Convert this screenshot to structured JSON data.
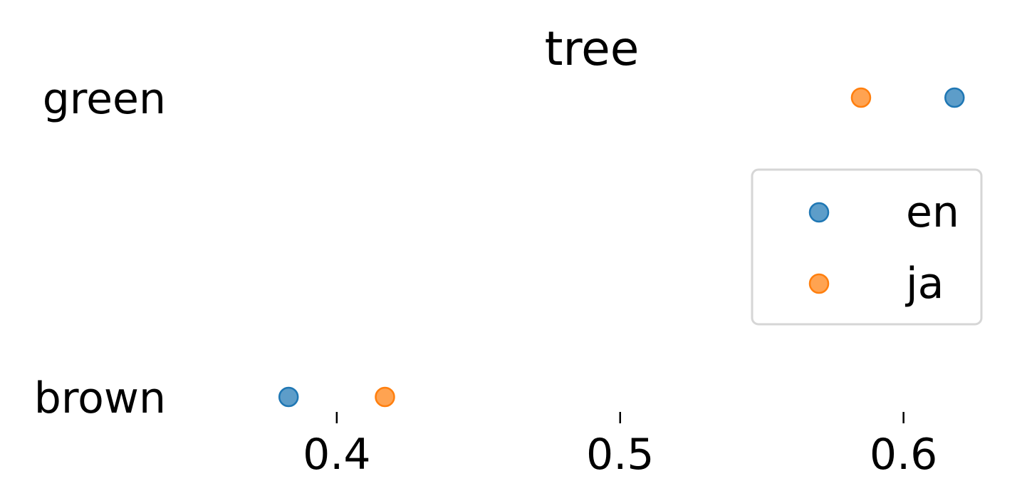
{
  "chart_data": {
    "type": "scatter",
    "title": "tree",
    "xlabel": "",
    "ylabel": "",
    "categories": [
      "green",
      "brown"
    ],
    "series": [
      {
        "name": "en",
        "color": "#1f77b4",
        "values": [
          0.618,
          0.383
        ]
      },
      {
        "name": "ja",
        "color": "#ff7f0e",
        "values": [
          0.585,
          0.417
        ]
      }
    ],
    "xlim": [
      0.345,
      0.63
    ],
    "xticks": [
      0.4,
      0.5,
      0.6
    ],
    "xtick_labels": [
      "0.4",
      "0.5",
      "0.6"
    ],
    "grid": false,
    "legend_position": "center-right"
  }
}
